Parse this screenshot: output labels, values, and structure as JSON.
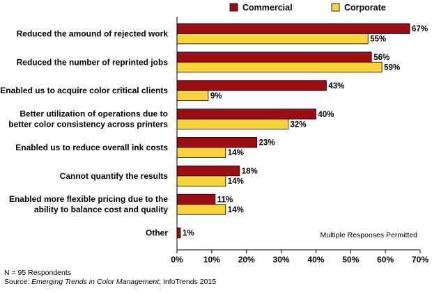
{
  "chart_data": {
    "type": "bar",
    "orientation": "horizontal",
    "categories": [
      [
        "Reduced the amound of rejected work"
      ],
      [
        "Reduced the number of reprinted jobs"
      ],
      [
        "Enabled us to acquire color critical clients"
      ],
      [
        "Better utilization of operations due to",
        "better color consistency across printers"
      ],
      [
        "Enabled us to reduce overall ink costs"
      ],
      [
        "Cannot quantify the results"
      ],
      [
        "Enabled more flexible pricing due to the",
        "ability to balance cost and quality"
      ],
      [
        "Other"
      ]
    ],
    "series": [
      {
        "name": "Commercial",
        "color": "#9b0e14",
        "values": [
          67,
          56,
          43,
          40,
          23,
          18,
          11,
          1
        ],
        "labels": [
          "67%",
          "56%",
          "43%",
          "40%",
          "23%",
          "18%",
          "11%",
          "1%"
        ]
      },
      {
        "name": "Corporate",
        "color": "#f8d33b",
        "values": [
          55,
          59,
          9,
          32,
          14,
          14,
          14,
          null
        ],
        "labels": [
          "55%",
          "59%",
          "9%",
          "32%",
          "14%",
          "14%",
          "14%",
          null
        ]
      }
    ],
    "xlim": [
      0,
      70
    ],
    "xticks": [
      0,
      10,
      20,
      30,
      40,
      50,
      60,
      70
    ],
    "xtick_labels": [
      "0%",
      "10%",
      "20%",
      "30%",
      "40%",
      "50%",
      "60%",
      "70%"
    ],
    "legend_position": "top",
    "grid": false,
    "annotation": "Multiple Responses Permitted"
  },
  "footer": {
    "respondents": "N = 95 Respondents",
    "source_prefix": "Source: ",
    "source_title": "Emerging Trends in Color Management",
    "source_suffix": "; InfoTrends 2015"
  }
}
